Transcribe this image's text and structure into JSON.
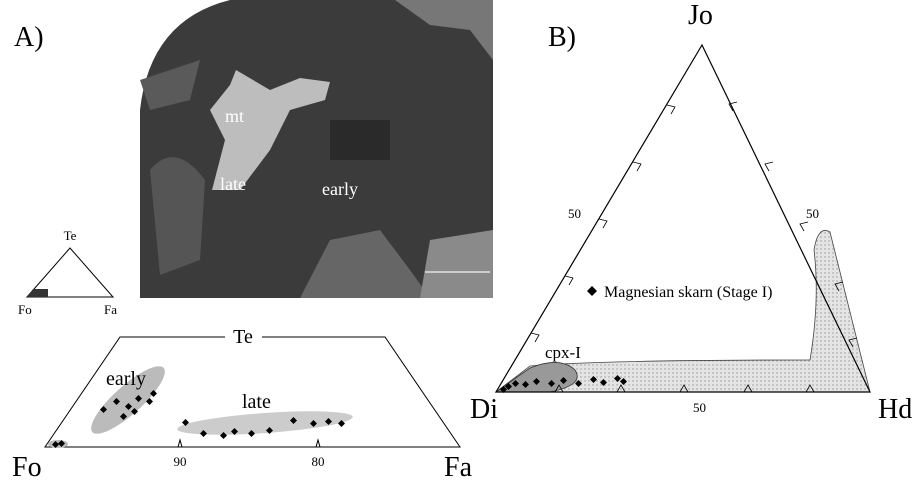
{
  "panel_a": {
    "label": "A)",
    "photo": {
      "labels": [
        "mt",
        "late",
        "early"
      ]
    },
    "small_triangle": {
      "apex": "Te",
      "left": "Fo",
      "right": "Fa"
    },
    "trapezoid": {
      "top": "Te",
      "fields": [
        "early",
        "late"
      ],
      "left": "Fo",
      "right": "Fa",
      "ticks": [
        "90",
        "80"
      ]
    }
  },
  "panel_b": {
    "label": "B)",
    "apex": "Jo",
    "left": "Di",
    "right": "Hd",
    "ticks": {
      "left": "50",
      "right": "50",
      "bottom": "50"
    },
    "legend": "Magnesian skarn (Stage I)",
    "field": "cpx-I"
  }
}
